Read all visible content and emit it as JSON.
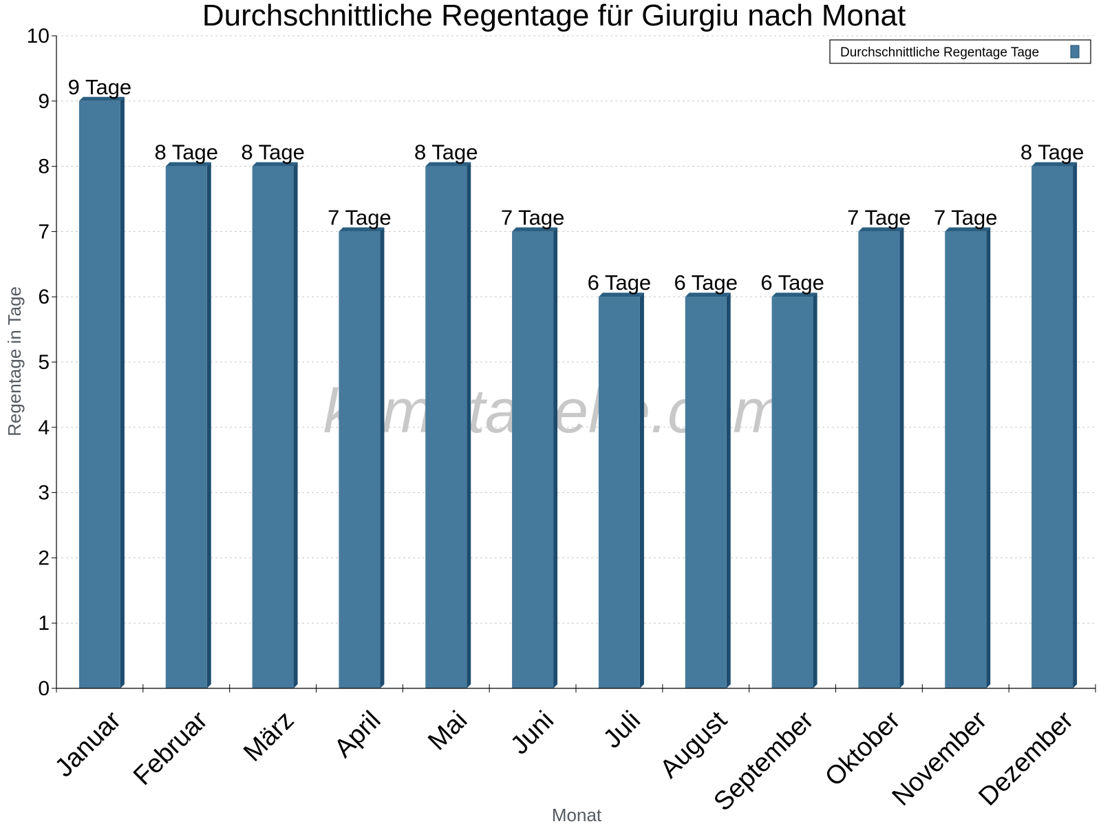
{
  "chart_data": {
    "type": "bar",
    "title": "Durchschnittliche Regentage für Giurgiu nach Monat",
    "xlabel": "Monat",
    "ylabel": "Regentage in Tage",
    "categories": [
      "Januar",
      "Februar",
      "März",
      "April",
      "Mai",
      "Juni",
      "Juli",
      "August",
      "September",
      "Oktober",
      "November",
      "Dezember"
    ],
    "series": [
      {
        "name": "Durchschnittliche Regentage Tage",
        "values": [
          9,
          8,
          8,
          7,
          8,
          7,
          6,
          6,
          6,
          7,
          7,
          8
        ],
        "labels": [
          "9 Tage",
          "8 Tage",
          "8 Tage",
          "7 Tage",
          "8 Tage",
          "7 Tage",
          "6 Tage",
          "6 Tage",
          "6 Tage",
          "7 Tage",
          "7 Tage",
          "8 Tage"
        ]
      }
    ],
    "ylim": [
      0,
      10
    ],
    "yticks": [
      0,
      1,
      2,
      3,
      4,
      5,
      6,
      7,
      8,
      9,
      10
    ],
    "grid": true,
    "legend": "top-right",
    "colors": {
      "bar": "#467a9c",
      "bar_side": "#1d4c6e",
      "bar_top": "#2b5f82",
      "grid": "#c8c8c8"
    }
  },
  "watermark": "klimatabelle.com"
}
